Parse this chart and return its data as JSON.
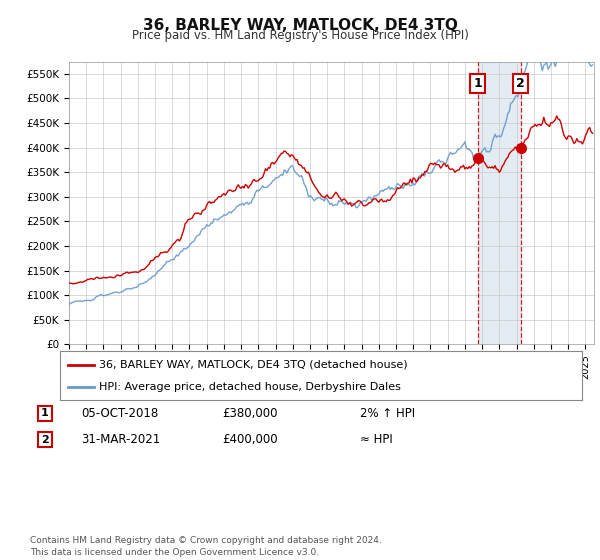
{
  "title": "36, BARLEY WAY, MATLOCK, DE4 3TQ",
  "subtitle": "Price paid vs. HM Land Registry's House Price Index (HPI)",
  "ylim": [
    0,
    575000
  ],
  "yticks": [
    0,
    50000,
    100000,
    150000,
    200000,
    250000,
    300000,
    350000,
    400000,
    450000,
    500000,
    550000
  ],
  "ytick_labels": [
    "£0",
    "£50K",
    "£100K",
    "£150K",
    "£200K",
    "£250K",
    "£300K",
    "£350K",
    "£400K",
    "£450K",
    "£500K",
    "£550K"
  ],
  "hpi_color": "#6699cc",
  "price_color": "#cc0000",
  "marker1_x": 2018.75,
  "marker2_x": 2021.25,
  "marker1_price": 380000,
  "marker2_price": 400000,
  "sale1_date": "05-OCT-2018",
  "sale1_price": "£380,000",
  "sale1_note": "2% ↑ HPI",
  "sale2_date": "31-MAR-2021",
  "sale2_price": "£400,000",
  "sale2_note": "≈ HPI",
  "legend_line1": "36, BARLEY WAY, MATLOCK, DE4 3TQ (detached house)",
  "legend_line2": "HPI: Average price, detached house, Derbyshire Dales",
  "footer": "Contains HM Land Registry data © Crown copyright and database right 2024.\nThis data is licensed under the Open Government Licence v3.0.",
  "bg_color": "#ffffff",
  "grid_color": "#cccccc",
  "shaded_region_color": "#dce6f1",
  "xlim_start": 1995.0,
  "xlim_end": 2025.5
}
